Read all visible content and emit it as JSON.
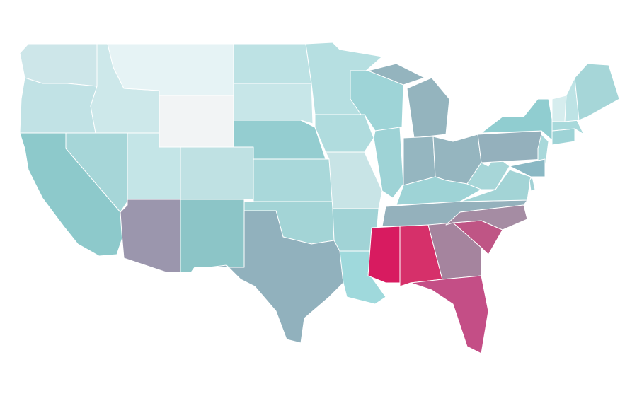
{
  "map": {
    "regions": [
      {
        "color": "#cde6e9"
      },
      {
        "color": "#c1e2e5"
      },
      {
        "color": "#cde8ea"
      },
      {
        "color": "#e6f3f5"
      },
      {
        "color": "#f2f4f5"
      },
      {
        "color": "#a6d6d8"
      },
      {
        "color": "#8dc9cb"
      },
      {
        "color": "#c4e5e7"
      },
      {
        "color": "#9b96ad"
      },
      {
        "color": "#bfe1e3"
      },
      {
        "color": "#8cc5c7"
      },
      {
        "color": "#bde2e4"
      },
      {
        "color": "#c7e6e8"
      },
      {
        "color": "#94cdd0"
      },
      {
        "color": "#a9d8da"
      },
      {
        "color": "#a3d4d6"
      },
      {
        "color": "#91b1bd"
      },
      {
        "color": "#b6dfe1"
      },
      {
        "color": "#b0dcde"
      },
      {
        "color": "#c8e4e6"
      },
      {
        "color": "#a1d3d6"
      },
      {
        "color": "#9fd9dc"
      },
      {
        "color": "#9ed4d7"
      },
      {
        "color": "#9ed3d6"
      },
      {
        "color": "#94b4be"
      },
      {
        "color": "#95b6c0"
      },
      {
        "color": "#95b5bf"
      },
      {
        "color": "#9ed3d6"
      },
      {
        "color": "#94b1bc"
      },
      {
        "color": "#d81b60"
      },
      {
        "color": "#d6306a"
      },
      {
        "color": "#a5849e"
      },
      {
        "color": "#c44e86"
      },
      {
        "color": "#bf5585"
      },
      {
        "color": "#a58ca3"
      },
      {
        "color": "#a3d4d6"
      },
      {
        "color": "#a7d6d8"
      },
      {
        "color": "#94b0bc"
      },
      {
        "color": "#90cdd0"
      },
      {
        "color": "#a8d8da"
      },
      {
        "color": "#8ab8c4"
      },
      {
        "color": "#9ed3d6"
      },
      {
        "color": "#a8d9db"
      },
      {
        "color": "#d6edee"
      },
      {
        "color": "#bde3e5"
      },
      {
        "color": "#a6d6d8"
      },
      {
        "color": "#a3d2d6"
      }
    ]
  }
}
